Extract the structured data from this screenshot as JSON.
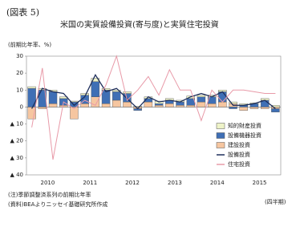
{
  "chart_data": {
    "type": "bar",
    "figure_label": "(図表 5)",
    "title": "米国の実質設備投資(寄与度)と実質住宅投資",
    "y_label": "(前期比年率、%)",
    "x_label": "(四半期)",
    "notes": [
      "(注)季節調整済系列の前期比年率",
      "(資料)BEAよりニッセイ基礎研究所作成"
    ],
    "categories": [
      "2010",
      null,
      null,
      null,
      "2011",
      null,
      null,
      null,
      "2012",
      null,
      null,
      null,
      "2013",
      null,
      null,
      null,
      "2014",
      null,
      null,
      null,
      "2015",
      null,
      null,
      null
    ],
    "ylim": [
      -40,
      30
    ],
    "yticks": [
      {
        "value": -40,
        "label": "▲ 40"
      },
      {
        "value": -30,
        "label": "▲ 30"
      },
      {
        "value": -20,
        "label": "▲ 20"
      },
      {
        "value": -10,
        "label": "▲ 10"
      },
      0,
      10,
      20,
      30
    ],
    "grid": false,
    "legend": "lower right",
    "series": [
      {
        "name": "知的財産投資",
        "color": "#eef3c8",
        "kind": "bar",
        "values": [
          1,
          1,
          1,
          1,
          0.5,
          1,
          2,
          1,
          1,
          1,
          0.5,
          1,
          1.5,
          1,
          1,
          1.5,
          1,
          1,
          1,
          1,
          1,
          0.5,
          1,
          1
        ]
      },
      {
        "name": "設備機器投資",
        "color": "#3f6fb5",
        "kind": "bar",
        "values": [
          11,
          10,
          7,
          4,
          3,
          5,
          9,
          8,
          5,
          5,
          -1,
          2,
          1,
          2,
          2,
          4,
          3,
          4,
          6,
          -1,
          1,
          2,
          4,
          -2
        ]
      },
      {
        "name": "建設投資",
        "color": "#f6c6a0",
        "kind": "bar",
        "values": [
          -7,
          -1,
          2,
          1,
          -7,
          2,
          6,
          2,
          4,
          3,
          -1,
          3,
          1,
          2,
          1,
          1,
          3,
          2,
          3,
          2,
          -2,
          -1,
          -1,
          -1
        ]
      },
      {
        "name": "設備投資",
        "color": "#1f2f5c",
        "kind": "line",
        "values": [
          -1,
          11,
          9,
          8,
          1,
          6,
          19,
          9,
          11,
          5,
          -1,
          6,
          3,
          4,
          3,
          6,
          8,
          6,
          9,
          1,
          1,
          2,
          4,
          -1
        ]
      },
      {
        "name": "住宅投資",
        "color": "#e89aa8",
        "kind": "line",
        "values": [
          -12,
          23,
          -31,
          3,
          -1,
          4,
          1,
          13,
          30,
          4,
          10,
          18,
          7,
          22,
          10,
          10,
          -8,
          10,
          3,
          10,
          10,
          9,
          8,
          8
        ]
      }
    ]
  }
}
